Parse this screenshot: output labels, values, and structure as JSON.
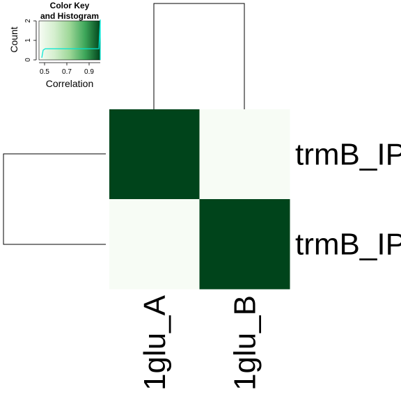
{
  "chart_data": {
    "type": "heatmap",
    "row_labels": [
      "trmB_IP",
      "trmB_IP"
    ],
    "col_labels": [
      "1glu_A",
      "1glu_B"
    ],
    "values": [
      [
        1.0,
        0.45
      ],
      [
        0.45,
        1.0
      ]
    ],
    "color_low": "#f7fcf5",
    "color_high": "#00441b",
    "row_dendrogram": true,
    "col_dendrogram": true,
    "color_key": {
      "title_line1": "Color Key",
      "title_line2": "and Histogram",
      "xlabel": "Correlation",
      "ylabel": "Count",
      "x_ticks": [
        "0.5",
        "0.7",
        "0.9"
      ],
      "y_ticks": [
        "0",
        "1",
        "2"
      ],
      "range": [
        0.45,
        1.0
      ]
    }
  }
}
